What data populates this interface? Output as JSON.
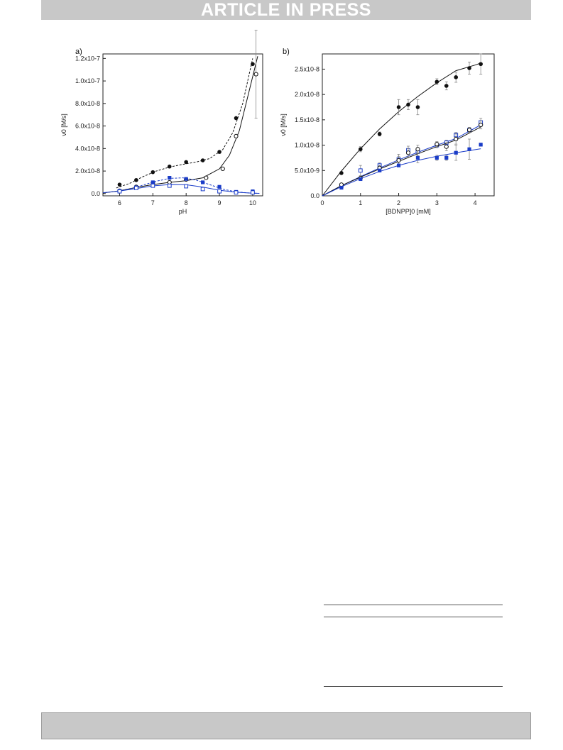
{
  "header": {
    "banner": "ARTICLE IN PRESS"
  },
  "chart_data": [
    {
      "type": "scatter",
      "panel_label": "a)",
      "xlabel": "pH",
      "ylabel": "v0 [M/s]",
      "xlim": [
        5.5,
        10.3
      ],
      "ylim": [
        -0.02,
        1.24
      ],
      "y_scale_note": "values in units of 1e-7 M/s",
      "x_ticks": [
        6,
        7,
        8,
        9,
        10
      ],
      "x_tick_labels": [
        "6",
        "7",
        "8",
        "9",
        "10"
      ],
      "y_ticks": [
        0,
        0.2,
        0.4,
        0.6,
        0.8,
        1.0,
        1.2
      ],
      "y_tick_labels": [
        "0.0",
        "2.0x10-8",
        "4.0x10-8",
        "6.0x10-8",
        "8.0x10-8",
        "1.0x10-7",
        "1.2x10-7"
      ],
      "series": [
        {
          "marker": "filled-circle",
          "color": "#111111",
          "x": [
            6.0,
            6.5,
            7.0,
            7.5,
            8.0,
            8.5,
            9.0,
            9.5,
            10.0
          ],
          "y": [
            0.08,
            0.12,
            0.19,
            0.24,
            0.28,
            0.295,
            0.37,
            0.67,
            1.15
          ],
          "fit": {
            "style": "dashed",
            "x": [
              5.9,
              6.3,
              6.7,
              7.1,
              7.5,
              7.9,
              8.3,
              8.7,
              9.1,
              9.4,
              9.7,
              10.0
            ],
            "y": [
              0.05,
              0.09,
              0.15,
              0.2,
              0.235,
              0.26,
              0.28,
              0.31,
              0.39,
              0.54,
              0.8,
              1.2
            ]
          }
        },
        {
          "marker": "open-circle",
          "color": "#111111",
          "x": [
            6.0,
            6.5,
            7.0,
            7.5,
            8.0,
            8.6,
            9.1,
            9.5,
            10.1
          ],
          "y": [
            0.025,
            0.06,
            0.095,
            0.1,
            0.125,
            0.14,
            0.22,
            0.51,
            1.06
          ],
          "error": [
            0,
            0,
            0,
            0,
            0,
            0,
            0,
            0,
            0.39
          ],
          "fit": {
            "style": "solid",
            "x": [
              5.5,
              6.0,
              6.5,
              7.0,
              7.5,
              8.0,
              8.5,
              9.0,
              9.3,
              9.6,
              9.9,
              10.15
            ],
            "y": [
              0.005,
              0.025,
              0.055,
              0.08,
              0.1,
              0.115,
              0.14,
              0.22,
              0.34,
              0.56,
              0.92,
              1.22
            ]
          }
        },
        {
          "marker": "filled-square",
          "color": "#1a3cc8",
          "x": [
            6.0,
            6.5,
            7.0,
            7.5,
            8.0,
            8.5,
            9.0,
            9.5,
            10.0
          ],
          "y": [
            0.025,
            0.055,
            0.1,
            0.14,
            0.13,
            0.1,
            0.06,
            0.015,
            0.02
          ],
          "fit": {
            "style": "dashed",
            "x": [
              5.9,
              6.3,
              6.7,
              7.1,
              7.5,
              7.9,
              8.3,
              8.7,
              9.1,
              9.5,
              9.9,
              10.2
            ],
            "y": [
              0.02,
              0.04,
              0.075,
              0.11,
              0.135,
              0.14,
              0.12,
              0.08,
              0.04,
              0.015,
              0.005,
              0.002
            ]
          }
        },
        {
          "marker": "open-square",
          "color": "#1a3cc8",
          "x": [
            6.0,
            6.5,
            7.0,
            7.5,
            8.0,
            8.5,
            9.0,
            9.5,
            10.0
          ],
          "y": [
            0.02,
            0.05,
            0.07,
            0.07,
            0.065,
            0.04,
            0.02,
            0.01,
            0.01
          ],
          "fit": {
            "style": "solid",
            "x": [
              5.5,
              6.0,
              6.5,
              7.0,
              7.5,
              8.0,
              8.5,
              9.0,
              9.5,
              10.0,
              10.2
            ],
            "y": [
              0.008,
              0.022,
              0.045,
              0.068,
              0.08,
              0.078,
              0.058,
              0.03,
              0.012,
              0.004,
              0.002
            ]
          }
        }
      ]
    },
    {
      "type": "scatter",
      "panel_label": "b)",
      "xlabel": "[BDNPP]0 [mM]",
      "ylabel": "v0 [M/s]",
      "xlim": [
        0,
        4.5
      ],
      "ylim": [
        0,
        2.8
      ],
      "y_scale_note": "values in units of 1e-8 M/s",
      "x_ticks": [
        0,
        1,
        2,
        3,
        4
      ],
      "x_tick_labels": [
        "0",
        "1",
        "2",
        "3",
        "4"
      ],
      "y_ticks": [
        0,
        0.5,
        1.0,
        1.5,
        2.0,
        2.5
      ],
      "y_tick_labels": [
        "0.0",
        "5.0x10-9",
        "1.0x10-8",
        "1.5x10-8",
        "2.0x10-8",
        "2.5x10-8"
      ],
      "series": [
        {
          "marker": "filled-circle",
          "color": "#111111",
          "x": [
            0.5,
            1.0,
            1.5,
            2.0,
            2.25,
            2.5,
            3.0,
            3.25,
            3.5,
            3.85,
            4.15
          ],
          "y": [
            0.45,
            0.92,
            1.22,
            1.75,
            1.8,
            1.75,
            2.25,
            2.17,
            2.34,
            2.52,
            2.6
          ],
          "error": [
            0,
            0.05,
            0.04,
            0.15,
            0.1,
            0.15,
            0.06,
            0.08,
            0.1,
            0.12,
            0.2
          ],
          "fit": {
            "style": "solid",
            "x": [
              0,
              0.5,
              1.0,
              1.5,
              2.0,
              2.5,
              3.0,
              3.5,
              4.0,
              4.15
            ],
            "y": [
              0,
              0.49,
              0.93,
              1.32,
              1.66,
              1.96,
              2.23,
              2.47,
              2.58,
              2.62
            ]
          }
        },
        {
          "marker": "open-square",
          "color": "#1a3cc8",
          "x": [
            0.5,
            1.0,
            1.5,
            2.0,
            2.25,
            2.5,
            3.0,
            3.25,
            3.5,
            3.85,
            4.15
          ],
          "y": [
            0.2,
            0.5,
            0.6,
            0.72,
            0.9,
            0.87,
            1.0,
            1.05,
            1.2,
            1.3,
            1.45
          ],
          "error": [
            0,
            0.1,
            0.05,
            0.1,
            0.08,
            0.08,
            0.05,
            0.05,
            0.05,
            0.05,
            0.08
          ],
          "fit": {
            "style": "solid",
            "x": [
              0,
              0.5,
              1.0,
              1.5,
              2.0,
              2.5,
              3.0,
              3.5,
              4.15
            ],
            "y": [
              0,
              0.2,
              0.38,
              0.55,
              0.71,
              0.86,
              1.0,
              1.13,
              1.4
            ]
          }
        },
        {
          "marker": "open-circle",
          "color": "#111111",
          "x": [
            0.5,
            1.0,
            1.5,
            2.0,
            2.25,
            2.5,
            3.0,
            3.25,
            3.5,
            3.85,
            4.15
          ],
          "y": [
            0.22,
            0.35,
            0.55,
            0.7,
            0.85,
            0.92,
            1.02,
            0.97,
            1.12,
            1.3,
            1.4
          ],
          "error": [
            0,
            0,
            0.05,
            0.08,
            0.08,
            0.08,
            0.05,
            0.08,
            0.1,
            0.05,
            0.08
          ],
          "fit": {
            "style": "solid",
            "x": [
              0,
              0.5,
              1.0,
              1.5,
              2.0,
              2.5,
              3.0,
              3.5,
              4.15
            ],
            "y": [
              0,
              0.2,
              0.37,
              0.53,
              0.68,
              0.83,
              0.97,
              1.1,
              1.36
            ]
          }
        },
        {
          "marker": "filled-square",
          "color": "#1a3cc8",
          "x": [
            0.5,
            1.0,
            1.5,
            2.0,
            2.5,
            3.0,
            3.25,
            3.5,
            3.85,
            4.15
          ],
          "y": [
            0.16,
            0.33,
            0.5,
            0.6,
            0.75,
            0.75,
            0.75,
            0.85,
            0.92,
            1.01
          ],
          "error": [
            0,
            0,
            0,
            0,
            0.1,
            0.05,
            0.05,
            0.15,
            0.2,
            0.03
          ],
          "fit": {
            "style": "solid",
            "x": [
              0,
              0.5,
              1.0,
              1.5,
              2.0,
              2.5,
              3.0,
              3.5,
              4.15
            ],
            "y": [
              0,
              0.18,
              0.34,
              0.48,
              0.6,
              0.7,
              0.78,
              0.85,
              0.93
            ]
          }
        }
      ]
    }
  ]
}
